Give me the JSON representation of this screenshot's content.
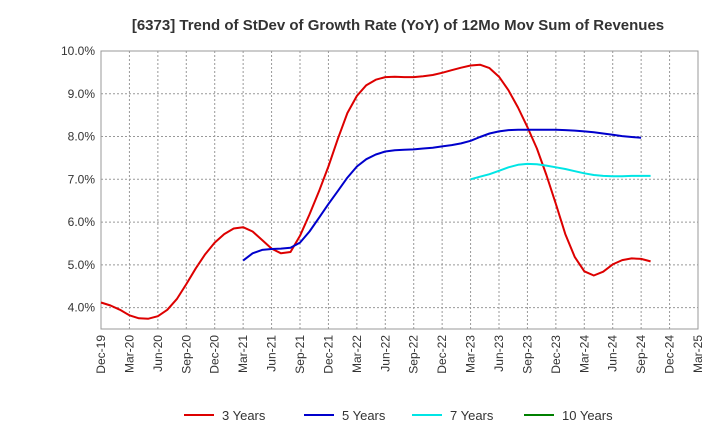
{
  "chart_data": {
    "type": "line",
    "title": "[6373]  Trend of StDev of Growth Rate (YoY) of 12Mo Mov Sum of Revenues",
    "xlabel": "",
    "ylabel": "",
    "ylim": [
      3.5,
      10.0
    ],
    "y_ticks": [
      4.0,
      5.0,
      6.0,
      7.0,
      8.0,
      9.0,
      10.0
    ],
    "y_tick_labels": [
      "4.0%",
      "5.0%",
      "6.0%",
      "7.0%",
      "8.0%",
      "9.0%",
      "10.0%"
    ],
    "x_ticks": [
      "Dec-19",
      "Mar-20",
      "Jun-20",
      "Sep-20",
      "Dec-20",
      "Mar-21",
      "Jun-21",
      "Sep-21",
      "Dec-21",
      "Mar-22",
      "Jun-22",
      "Sep-22",
      "Dec-22",
      "Mar-23",
      "Jun-23",
      "Sep-23",
      "Dec-23",
      "Mar-24",
      "Jun-24",
      "Sep-24",
      "Dec-24",
      "Mar-25"
    ],
    "grid": true,
    "legend_position": "bottom",
    "series": [
      {
        "name": "3 Years",
        "color": "#dd0000",
        "start_index": 0,
        "values": [
          4.12,
          4.05,
          3.95,
          3.82,
          3.75,
          3.74,
          3.8,
          3.95,
          4.2,
          4.55,
          4.92,
          5.25,
          5.52,
          5.72,
          5.85,
          5.88,
          5.78,
          5.58,
          5.38,
          5.27,
          5.3,
          5.68,
          6.18,
          6.72,
          7.3,
          7.95,
          8.55,
          8.95,
          9.2,
          9.33,
          9.39,
          9.4,
          9.39,
          9.39,
          9.41,
          9.44,
          9.49,
          9.55,
          9.61,
          9.66,
          9.68,
          9.6,
          9.4,
          9.08,
          8.68,
          8.22,
          7.72,
          7.1,
          6.42,
          5.72,
          5.18,
          4.85,
          4.75,
          4.84,
          5.01,
          5.11,
          5.15,
          5.14,
          5.08
        ]
      },
      {
        "name": "5 Years",
        "color": "#0000cc",
        "start_index": 15,
        "values": [
          5.1,
          5.27,
          5.35,
          5.37,
          5.38,
          5.4,
          5.52,
          5.78,
          6.1,
          6.42,
          6.73,
          7.04,
          7.3,
          7.47,
          7.58,
          7.65,
          7.68,
          7.69,
          7.7,
          7.72,
          7.74,
          7.77,
          7.8,
          7.84,
          7.9,
          7.99,
          8.07,
          8.12,
          8.15,
          8.16,
          8.16,
          8.16,
          8.16,
          8.16,
          8.15,
          8.14,
          8.12,
          8.1,
          8.07,
          8.04,
          8.01,
          7.99,
          7.97
        ]
      },
      {
        "name": "7 Years",
        "color": "#00e5e5",
        "start_index": 39,
        "values": [
          7.0,
          7.06,
          7.12,
          7.2,
          7.28,
          7.34,
          7.36,
          7.35,
          7.32,
          7.28,
          7.24,
          7.19,
          7.14,
          7.1,
          7.08,
          7.07,
          7.07,
          7.08,
          7.08,
          7.08
        ]
      },
      {
        "name": "10 Years",
        "color": "#008000",
        "start_index": 0,
        "values": []
      }
    ]
  }
}
